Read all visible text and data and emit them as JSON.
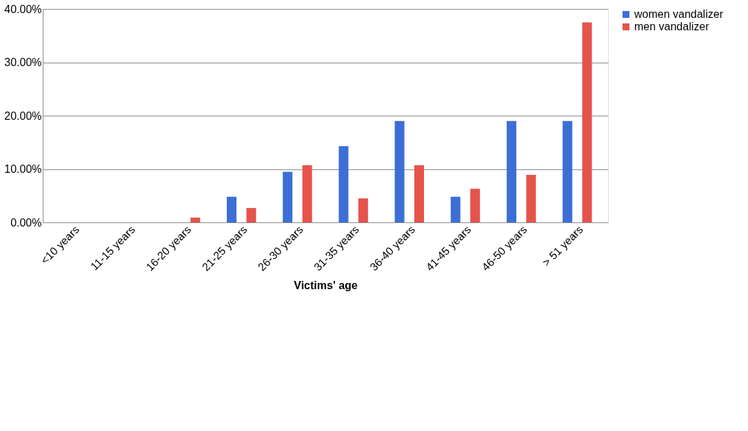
{
  "chart_data": {
    "type": "bar",
    "xlabel": "Victims' age",
    "categories": [
      "<10 years",
      "11-15 years",
      "16-20 years",
      "21-25 years",
      "26-30 years",
      "31-35 years",
      "36-40 years",
      "41-45 years",
      "46-50 years",
      "> 51 years"
    ],
    "series": [
      {
        "name": "women vandalizer",
        "color": "#3b6fd6",
        "values": [
          0,
          0,
          0,
          4.8,
          9.5,
          14.3,
          19,
          4.8,
          19,
          19
        ]
      },
      {
        "name": "men vandalizer",
        "color": "#e5534b",
        "values": [
          0,
          0,
          0.9,
          2.7,
          10.7,
          4.5,
          10.7,
          6.3,
          8.9,
          37.5
        ]
      }
    ],
    "ylim": [
      0,
      40
    ],
    "yticks": [
      {
        "value": 0,
        "label": "0.00%"
      },
      {
        "value": 10,
        "label": "10.00%"
      },
      {
        "value": 20,
        "label": "20.00%"
      },
      {
        "value": 30,
        "label": "30.00%"
      },
      {
        "value": 40,
        "label": "40.00%"
      }
    ],
    "grid": "y",
    "legend": "right"
  }
}
